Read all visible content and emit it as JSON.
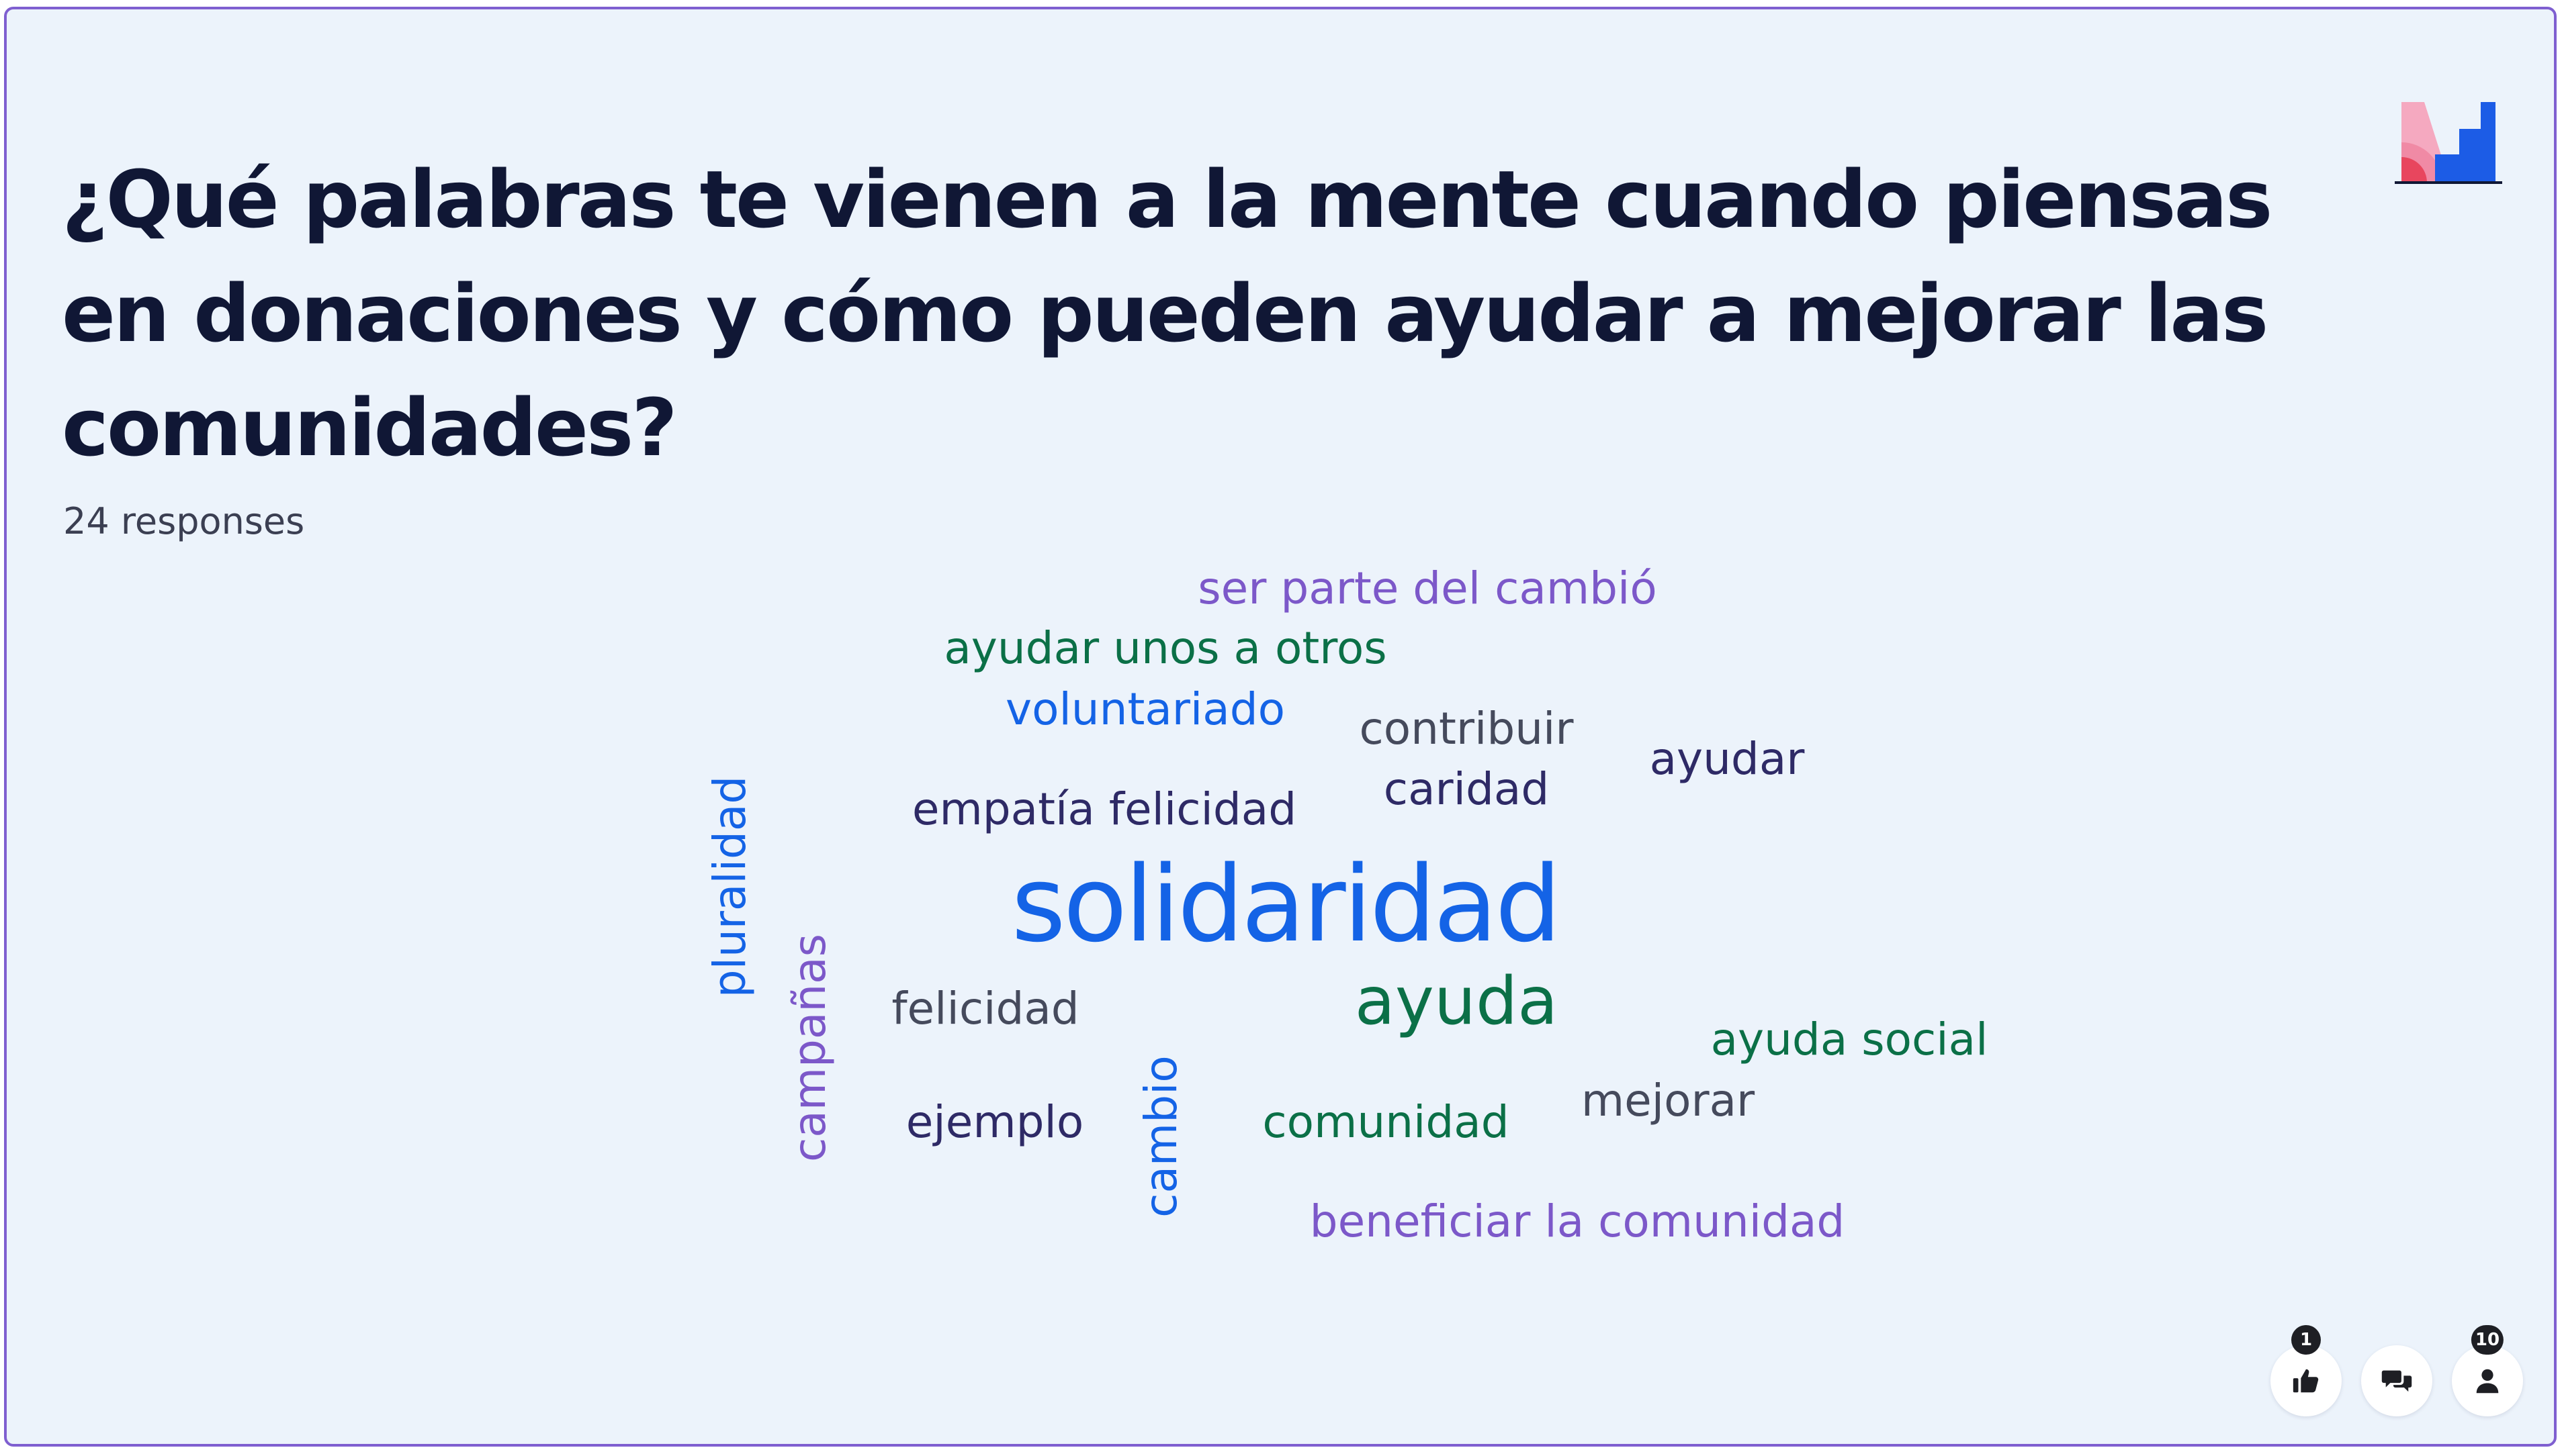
{
  "question": {
    "title": "¿Qué palabras te vienen a la mente cuando piensas en donaciones y cómo pueden ayudar a mejorar las comunidades?",
    "responses_label": "24 responses"
  },
  "logo": {
    "icon": "mentimeter-logo",
    "colors": [
      "#f5a9c0",
      "#e8465e",
      "#1c5ce6"
    ]
  },
  "colors": {
    "slide_background": "#ecf3fb",
    "slide_border": "#7f5fd0",
    "title_text": "#101735",
    "blue": "#1463e6",
    "green": "#0b7047",
    "purple": "#7c58c9",
    "navy": "#2e2a66",
    "gray": "#454a5c"
  },
  "wordcloud": {
    "words": [
      {
        "text": "ser parte del cambió",
        "color": "#7c58c9",
        "vertical": false
      },
      {
        "text": "ayudar unos a otros",
        "color": "#0b7047",
        "vertical": false
      },
      {
        "text": "voluntariado",
        "color": "#1463e6",
        "vertical": false
      },
      {
        "text": "contribuir",
        "color": "#454a5c",
        "vertical": false
      },
      {
        "text": "caridad",
        "color": "#2e2a66",
        "vertical": false
      },
      {
        "text": "ayudar",
        "color": "#2e2a66",
        "vertical": false
      },
      {
        "text": "empatía felicidad",
        "color": "#2e2a66",
        "vertical": false
      },
      {
        "text": "solidaridad",
        "color": "#1463e6",
        "vertical": false
      },
      {
        "text": "ayuda",
        "color": "#0b7047",
        "vertical": false
      },
      {
        "text": "felicidad",
        "color": "#454a5c",
        "vertical": false
      },
      {
        "text": "ayuda social",
        "color": "#0b7047",
        "vertical": false
      },
      {
        "text": "mejorar",
        "color": "#454a5c",
        "vertical": false
      },
      {
        "text": "ejemplo",
        "color": "#2e2a66",
        "vertical": false
      },
      {
        "text": "comunidad",
        "color": "#0b7047",
        "vertical": false
      },
      {
        "text": "beneficiar la comunidad",
        "color": "#7c58c9",
        "vertical": false
      },
      {
        "text": "pluralidad",
        "color": "#1463e6",
        "vertical": true
      },
      {
        "text": "campañas",
        "color": "#7c58c9",
        "vertical": true
      },
      {
        "text": "cambio",
        "color": "#1463e6",
        "vertical": true
      }
    ]
  },
  "controls": {
    "reactions": {
      "icon": "thumbs-up-icon",
      "count": "1"
    },
    "qa": {
      "icon": "speech-bubbles-icon"
    },
    "participants": {
      "icon": "person-icon",
      "count": "10"
    }
  }
}
